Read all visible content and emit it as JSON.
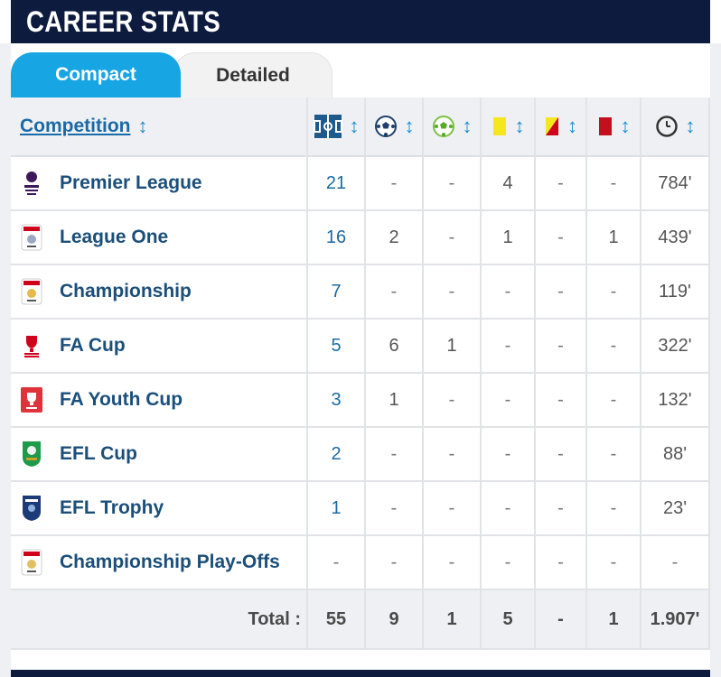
{
  "header": {
    "title": "CAREER STATS"
  },
  "tabs": {
    "compact": "Compact",
    "detailed": "Detailed"
  },
  "table": {
    "competition_header": "Competition",
    "sort_arrow": "↕",
    "column_icons": [
      "appearances-icon",
      "goals-icon",
      "assists-icon",
      "yellow-card-icon",
      "second-yellow-icon",
      "red-card-icon",
      "minutes-clock-icon"
    ],
    "rows": [
      {
        "logo": "premier-league-logo",
        "name": "Premier League",
        "apps": "21",
        "goals": "-",
        "assists": "-",
        "yellow": "4",
        "second_yellow": "-",
        "red": "-",
        "minutes": "784'"
      },
      {
        "logo": "league-one-logo",
        "name": "League One",
        "apps": "16",
        "goals": "2",
        "assists": "-",
        "yellow": "1",
        "second_yellow": "-",
        "red": "1",
        "minutes": "439'"
      },
      {
        "logo": "championship-logo",
        "name": "Championship",
        "apps": "7",
        "goals": "-",
        "assists": "-",
        "yellow": "-",
        "second_yellow": "-",
        "red": "-",
        "minutes": "119'"
      },
      {
        "logo": "fa-cup-logo",
        "name": "FA Cup",
        "apps": "5",
        "goals": "6",
        "assists": "1",
        "yellow": "-",
        "second_yellow": "-",
        "red": "-",
        "minutes": "322'"
      },
      {
        "logo": "fa-youth-cup-logo",
        "name": "FA Youth Cup",
        "apps": "3",
        "goals": "1",
        "assists": "-",
        "yellow": "-",
        "second_yellow": "-",
        "red": "-",
        "minutes": "132'"
      },
      {
        "logo": "efl-cup-logo",
        "name": "EFL Cup",
        "apps": "2",
        "goals": "-",
        "assists": "-",
        "yellow": "-",
        "second_yellow": "-",
        "red": "-",
        "minutes": "88'"
      },
      {
        "logo": "efl-trophy-logo",
        "name": "EFL Trophy",
        "apps": "1",
        "goals": "-",
        "assists": "-",
        "yellow": "-",
        "second_yellow": "-",
        "red": "-",
        "minutes": "23'"
      },
      {
        "logo": "championship-playoffs-logo",
        "name": "Championship Play-Offs",
        "apps": "-",
        "goals": "-",
        "assists": "-",
        "yellow": "-",
        "second_yellow": "-",
        "red": "-",
        "minutes": "-"
      }
    ],
    "total": {
      "label": "Total :",
      "apps": "55",
      "goals": "9",
      "assists": "1",
      "yellow": "5",
      "second_yellow": "-",
      "red": "1",
      "minutes": "1.907'"
    }
  },
  "colors": {
    "header_bg": "#0d1b3e",
    "tab_active": "#17a5e3",
    "link": "#1b4f7a",
    "yellow_card": "#f5e71c",
    "red_card": "#d0021b"
  }
}
